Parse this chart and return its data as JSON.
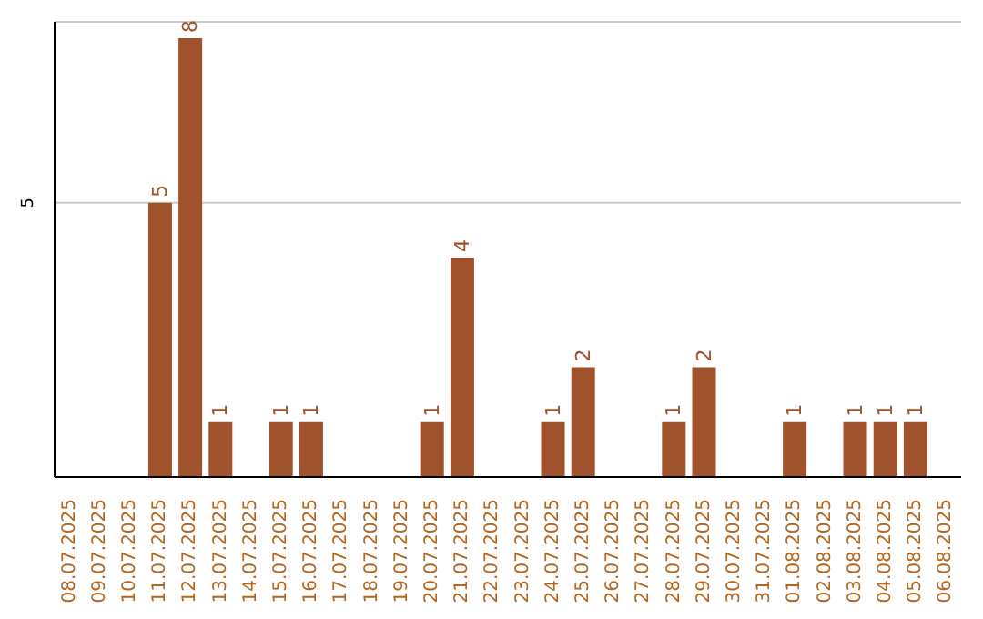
{
  "chart_data": {
    "type": "bar",
    "categories": [
      "08.07.2025",
      "09.07.2025",
      "10.07.2025",
      "11.07.2025",
      "12.07.2025",
      "13.07.2025",
      "14.07.2025",
      "15.07.2025",
      "16.07.2025",
      "17.07.2025",
      "18.07.2025",
      "19.07.2025",
      "20.07.2025",
      "21.07.2025",
      "22.07.2025",
      "23.07.2025",
      "24.07.2025",
      "25.07.2025",
      "26.07.2025",
      "27.07.2025",
      "28.07.2025",
      "29.07.2025",
      "30.07.2025",
      "31.07.2025",
      "01.08.2025",
      "02.08.2025",
      "03.08.2025",
      "04.08.2025",
      "05.08.2025",
      "06.08.2025"
    ],
    "values": [
      null,
      null,
      null,
      5,
      8,
      1,
      null,
      1,
      1,
      null,
      null,
      null,
      1,
      4,
      null,
      null,
      1,
      2,
      null,
      null,
      1,
      2,
      null,
      null,
      1,
      null,
      1,
      1,
      1,
      null
    ],
    "color": "#a0522d",
    "ylim": [
      0,
      8.3
    ],
    "yticks": [
      5
    ],
    "grid": "y",
    "data_labels": true
  }
}
